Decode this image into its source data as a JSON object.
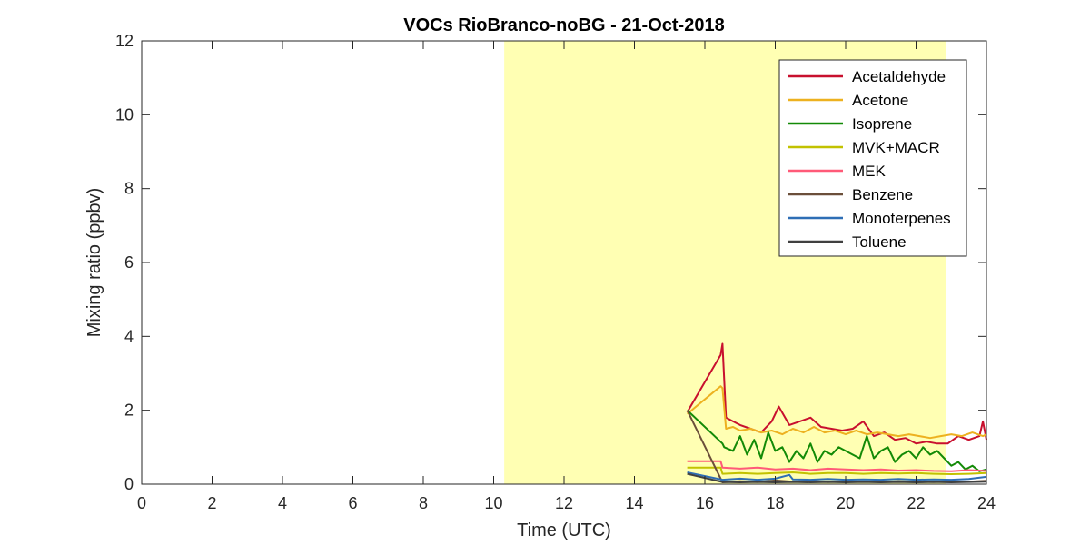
{
  "chart_data": {
    "type": "line",
    "title": "VOCs RioBranco-noBG - 21-Oct-2018",
    "xlabel": "Time (UTC)",
    "ylabel": "Mixing ratio (ppbv)",
    "xlim": [
      0,
      24
    ],
    "ylim": [
      0,
      12
    ],
    "xticks": [
      0,
      2,
      4,
      6,
      8,
      10,
      12,
      14,
      16,
      18,
      20,
      22,
      24
    ],
    "yticks": [
      0,
      2,
      4,
      6,
      8,
      10,
      12
    ],
    "grid": false,
    "legend_position": "top-right",
    "daylight_band": {
      "x_start": 10.3,
      "x_end": 22.85,
      "color": "#ffffb3"
    },
    "series": [
      {
        "name": "Acetaldehyde",
        "color": "#c8102e",
        "x": [
          15.5,
          16.45,
          16.5,
          16.6,
          16.8,
          17.0,
          17.3,
          17.6,
          17.9,
          18.1,
          18.4,
          18.7,
          19.0,
          19.3,
          19.6,
          19.9,
          20.2,
          20.5,
          20.8,
          21.1,
          21.4,
          21.7,
          22.0,
          22.3,
          22.6,
          22.9,
          23.2,
          23.5,
          23.8,
          23.9,
          24.0
        ],
        "y": [
          1.95,
          3.5,
          3.8,
          1.8,
          1.7,
          1.6,
          1.5,
          1.4,
          1.7,
          2.1,
          1.6,
          1.7,
          1.8,
          1.55,
          1.5,
          1.45,
          1.5,
          1.7,
          1.3,
          1.4,
          1.2,
          1.25,
          1.1,
          1.15,
          1.1,
          1.1,
          1.3,
          1.2,
          1.3,
          1.7,
          1.2
        ]
      },
      {
        "name": "Acetone",
        "color": "#edb120",
        "x": [
          15.5,
          16.45,
          16.5,
          16.6,
          16.8,
          17.0,
          17.3,
          17.6,
          17.9,
          18.2,
          18.5,
          18.8,
          19.1,
          19.4,
          19.7,
          20.0,
          20.3,
          20.6,
          20.9,
          21.2,
          21.5,
          21.8,
          22.1,
          22.4,
          22.7,
          23.0,
          23.3,
          23.6,
          23.9,
          24.0
        ],
        "y": [
          1.9,
          2.65,
          2.6,
          1.5,
          1.55,
          1.45,
          1.5,
          1.4,
          1.45,
          1.35,
          1.5,
          1.4,
          1.55,
          1.4,
          1.45,
          1.35,
          1.45,
          1.35,
          1.4,
          1.35,
          1.3,
          1.35,
          1.3,
          1.25,
          1.3,
          1.35,
          1.3,
          1.4,
          1.3,
          1.35
        ]
      },
      {
        "name": "Isoprene",
        "color": "#138a07",
        "x": [
          15.5,
          16.5,
          16.55,
          16.8,
          17.0,
          17.2,
          17.4,
          17.6,
          17.8,
          18.0,
          18.2,
          18.4,
          18.6,
          18.8,
          19.0,
          19.2,
          19.4,
          19.6,
          19.8,
          20.0,
          20.2,
          20.4,
          20.6,
          20.8,
          21.0,
          21.2,
          21.4,
          21.6,
          21.8,
          22.0,
          22.2,
          22.4,
          22.6,
          22.8,
          23.0,
          23.2,
          23.4,
          23.6,
          23.8,
          24.0
        ],
        "y": [
          2.0,
          1.1,
          1.0,
          0.9,
          1.3,
          0.8,
          1.2,
          0.7,
          1.4,
          0.9,
          1.0,
          0.6,
          0.9,
          0.7,
          1.1,
          0.6,
          0.9,
          0.8,
          1.0,
          0.9,
          0.8,
          0.7,
          1.3,
          0.7,
          0.9,
          1.0,
          0.6,
          0.8,
          0.9,
          0.7,
          1.0,
          0.8,
          0.9,
          0.7,
          0.5,
          0.6,
          0.4,
          0.5,
          0.35,
          0.4
        ]
      },
      {
        "name": "MVK+MACR",
        "color": "#c2c200",
        "x": [
          15.5,
          16.45,
          16.5,
          17.0,
          17.5,
          18.0,
          18.5,
          19.0,
          19.5,
          20.0,
          20.5,
          21.0,
          21.5,
          22.0,
          22.5,
          23.0,
          23.5,
          24.0
        ],
        "y": [
          0.45,
          0.45,
          0.28,
          0.3,
          0.28,
          0.3,
          0.32,
          0.28,
          0.3,
          0.3,
          0.28,
          0.3,
          0.29,
          0.3,
          0.28,
          0.27,
          0.28,
          0.3
        ]
      },
      {
        "name": "MEK",
        "color": "#ff5a78",
        "x": [
          15.5,
          16.45,
          16.5,
          17.0,
          17.5,
          18.0,
          18.5,
          19.0,
          19.5,
          20.0,
          20.5,
          21.0,
          21.5,
          22.0,
          22.5,
          23.0,
          23.5,
          24.0
        ],
        "y": [
          0.62,
          0.62,
          0.45,
          0.42,
          0.45,
          0.4,
          0.42,
          0.38,
          0.42,
          0.4,
          0.38,
          0.4,
          0.37,
          0.38,
          0.36,
          0.35,
          0.38,
          0.36
        ]
      },
      {
        "name": "Benzene",
        "color": "#6b4f3a",
        "x": [
          15.5,
          16.5,
          17.0,
          17.5,
          18.0,
          18.5,
          19.0,
          19.5,
          20.0,
          20.5,
          21.0,
          21.5,
          22.0,
          22.5,
          23.0,
          23.5,
          24.0
        ],
        "y": [
          2.0,
          0.05,
          0.08,
          0.06,
          0.1,
          0.07,
          0.09,
          0.06,
          0.08,
          0.07,
          0.06,
          0.08,
          0.07,
          0.06,
          0.08,
          0.07,
          0.09
        ]
      },
      {
        "name": "Monoterpenes",
        "color": "#2e6eb5",
        "x": [
          15.5,
          16.5,
          17.0,
          17.5,
          18.0,
          18.4,
          18.5,
          19.0,
          19.5,
          20.0,
          20.5,
          21.0,
          21.5,
          22.0,
          22.5,
          23.0,
          23.5,
          24.0
        ],
        "y": [
          0.32,
          0.12,
          0.15,
          0.12,
          0.15,
          0.25,
          0.13,
          0.12,
          0.14,
          0.12,
          0.13,
          0.12,
          0.14,
          0.12,
          0.13,
          0.12,
          0.14,
          0.2
        ]
      },
      {
        "name": "Toluene",
        "color": "#404040",
        "x": [
          15.5,
          16.5,
          17.0,
          17.5,
          18.0,
          18.5,
          19.0,
          19.5,
          20.0,
          20.5,
          21.0,
          21.5,
          22.0,
          22.5,
          23.0,
          23.5,
          24.0
        ],
        "y": [
          0.28,
          0.06,
          0.05,
          0.06,
          0.05,
          0.06,
          0.05,
          0.06,
          0.05,
          0.06,
          0.05,
          0.06,
          0.05,
          0.06,
          0.05,
          0.06,
          0.07
        ]
      }
    ]
  }
}
